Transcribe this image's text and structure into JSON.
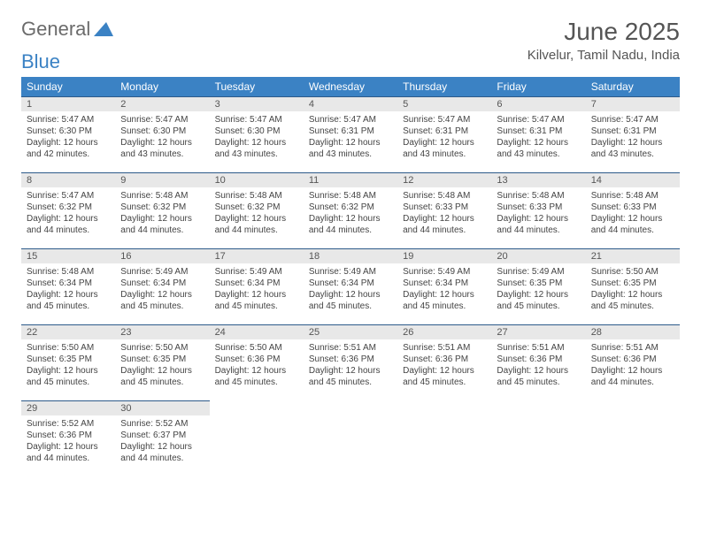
{
  "logo": {
    "text1": "General",
    "text2": "Blue"
  },
  "title": "June 2025",
  "location": "Kilvelur, Tamil Nadu, India",
  "colors": {
    "header_bg": "#3b82c4",
    "header_text": "#ffffff",
    "daynum_bg": "#e8e8e8",
    "row_border": "#2d5a8a",
    "text": "#444444"
  },
  "weekdays": [
    "Sunday",
    "Monday",
    "Tuesday",
    "Wednesday",
    "Thursday",
    "Friday",
    "Saturday"
  ],
  "days": [
    {
      "n": 1,
      "sr": "5:47 AM",
      "ss": "6:30 PM",
      "dl": "12 hours and 42 minutes."
    },
    {
      "n": 2,
      "sr": "5:47 AM",
      "ss": "6:30 PM",
      "dl": "12 hours and 43 minutes."
    },
    {
      "n": 3,
      "sr": "5:47 AM",
      "ss": "6:30 PM",
      "dl": "12 hours and 43 minutes."
    },
    {
      "n": 4,
      "sr": "5:47 AM",
      "ss": "6:31 PM",
      "dl": "12 hours and 43 minutes."
    },
    {
      "n": 5,
      "sr": "5:47 AM",
      "ss": "6:31 PM",
      "dl": "12 hours and 43 minutes."
    },
    {
      "n": 6,
      "sr": "5:47 AM",
      "ss": "6:31 PM",
      "dl": "12 hours and 43 minutes."
    },
    {
      "n": 7,
      "sr": "5:47 AM",
      "ss": "6:31 PM",
      "dl": "12 hours and 43 minutes."
    },
    {
      "n": 8,
      "sr": "5:47 AM",
      "ss": "6:32 PM",
      "dl": "12 hours and 44 minutes."
    },
    {
      "n": 9,
      "sr": "5:48 AM",
      "ss": "6:32 PM",
      "dl": "12 hours and 44 minutes."
    },
    {
      "n": 10,
      "sr": "5:48 AM",
      "ss": "6:32 PM",
      "dl": "12 hours and 44 minutes."
    },
    {
      "n": 11,
      "sr": "5:48 AM",
      "ss": "6:32 PM",
      "dl": "12 hours and 44 minutes."
    },
    {
      "n": 12,
      "sr": "5:48 AM",
      "ss": "6:33 PM",
      "dl": "12 hours and 44 minutes."
    },
    {
      "n": 13,
      "sr": "5:48 AM",
      "ss": "6:33 PM",
      "dl": "12 hours and 44 minutes."
    },
    {
      "n": 14,
      "sr": "5:48 AM",
      "ss": "6:33 PM",
      "dl": "12 hours and 44 minutes."
    },
    {
      "n": 15,
      "sr": "5:48 AM",
      "ss": "6:34 PM",
      "dl": "12 hours and 45 minutes."
    },
    {
      "n": 16,
      "sr": "5:49 AM",
      "ss": "6:34 PM",
      "dl": "12 hours and 45 minutes."
    },
    {
      "n": 17,
      "sr": "5:49 AM",
      "ss": "6:34 PM",
      "dl": "12 hours and 45 minutes."
    },
    {
      "n": 18,
      "sr": "5:49 AM",
      "ss": "6:34 PM",
      "dl": "12 hours and 45 minutes."
    },
    {
      "n": 19,
      "sr": "5:49 AM",
      "ss": "6:34 PM",
      "dl": "12 hours and 45 minutes."
    },
    {
      "n": 20,
      "sr": "5:49 AM",
      "ss": "6:35 PM",
      "dl": "12 hours and 45 minutes."
    },
    {
      "n": 21,
      "sr": "5:50 AM",
      "ss": "6:35 PM",
      "dl": "12 hours and 45 minutes."
    },
    {
      "n": 22,
      "sr": "5:50 AM",
      "ss": "6:35 PM",
      "dl": "12 hours and 45 minutes."
    },
    {
      "n": 23,
      "sr": "5:50 AM",
      "ss": "6:35 PM",
      "dl": "12 hours and 45 minutes."
    },
    {
      "n": 24,
      "sr": "5:50 AM",
      "ss": "6:36 PM",
      "dl": "12 hours and 45 minutes."
    },
    {
      "n": 25,
      "sr": "5:51 AM",
      "ss": "6:36 PM",
      "dl": "12 hours and 45 minutes."
    },
    {
      "n": 26,
      "sr": "5:51 AM",
      "ss": "6:36 PM",
      "dl": "12 hours and 45 minutes."
    },
    {
      "n": 27,
      "sr": "5:51 AM",
      "ss": "6:36 PM",
      "dl": "12 hours and 45 minutes."
    },
    {
      "n": 28,
      "sr": "5:51 AM",
      "ss": "6:36 PM",
      "dl": "12 hours and 44 minutes."
    },
    {
      "n": 29,
      "sr": "5:52 AM",
      "ss": "6:36 PM",
      "dl": "12 hours and 44 minutes."
    },
    {
      "n": 30,
      "sr": "5:52 AM",
      "ss": "6:37 PM",
      "dl": "12 hours and 44 minutes."
    }
  ],
  "labels": {
    "sunrise": "Sunrise:",
    "sunset": "Sunset:",
    "daylight": "Daylight:"
  }
}
